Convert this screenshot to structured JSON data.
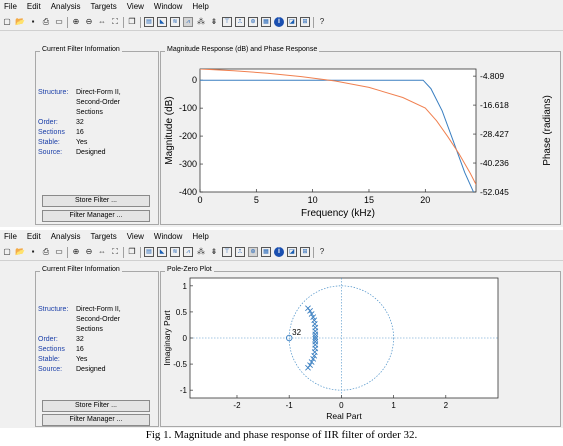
{
  "menu": [
    "File",
    "Edit",
    "Analysis",
    "Targets",
    "View",
    "Window",
    "Help"
  ],
  "toolbar_icons": [
    "new-icon",
    "open-icon",
    "save-icon",
    "print-icon",
    "print-preview-icon",
    "zoom-in-icon",
    "zoom-out-icon",
    "zoom-x-icon",
    "full-view-icon",
    "new-window-icon",
    "filter-spec-icon",
    "magnitude-icon",
    "phase-icon",
    "magnitude-phase-icon",
    "group-delay-icon",
    "phase-delay-icon",
    "impulse-response-icon",
    "step-response-icon",
    "pole-zero-icon",
    "coefficients-icon",
    "info-icon",
    "round-off-icon",
    "quantization-icon",
    "whats-this-icon"
  ],
  "filter_info": {
    "title": "Current Filter Information",
    "structure_label": "Structure:",
    "structure_value": "Direct-Form II, Second-Order Sections",
    "order_label": "Order:",
    "order_value": "32",
    "sections_label": "Sections",
    "sections_value": "16",
    "stable_label": "Stable:",
    "stable_value": "Yes",
    "source_label": "Source:",
    "source_value": "Designed",
    "store_button": "Store Filter ...",
    "manager_button": "Filter Manager ..."
  },
  "window1": {
    "panel_title": "Magnitude Response (dB) and Phase Response",
    "chart_data": {
      "type": "line",
      "xlabel": "Frequency (kHz)",
      "ylabel": "Magnitude (dB)",
      "y2label": "Phase (radians)",
      "xlim": [
        0,
        24.5
      ],
      "ylim": [
        -400,
        40
      ],
      "y2lim": [
        -52.045,
        -1.9
      ],
      "xticks": [
        0,
        5,
        10,
        15,
        20
      ],
      "yticks": [
        0,
        -100,
        -200,
        -300,
        -400
      ],
      "y2ticks": [
        "-4.809",
        "-16.618",
        "-28.427",
        "-40.236",
        "-52.045"
      ],
      "series": [
        {
          "color": "#3a7fc1",
          "axis": "left",
          "x": [
            0,
            5,
            10,
            15,
            19.8,
            20.5,
            21.5,
            22.5,
            23.5,
            24.5
          ],
          "y": [
            0,
            0,
            0,
            0,
            0,
            -30,
            -110,
            -220,
            -330,
            -420
          ]
        },
        {
          "color": "#f08050",
          "axis": "right",
          "x": [
            0,
            3,
            6,
            9,
            12,
            15,
            18,
            20,
            21,
            22,
            23,
            24,
            24.5
          ],
          "y": [
            -1.9,
            -2.6,
            -3.6,
            -5.0,
            -6.8,
            -9.4,
            -13.5,
            -17.8,
            -23,
            -29.5,
            -36.5,
            -44.5,
            -49
          ]
        }
      ]
    }
  },
  "window2": {
    "panel_title": "Pole-Zero Plot",
    "chart_data": {
      "type": "scatter",
      "xlabel": "Real Part",
      "ylabel": "Imaginary Part",
      "xlim": [
        -2.9,
        3.0
      ],
      "ylim": [
        -1.15,
        1.15
      ],
      "xticks": [
        -2,
        -1,
        0,
        1,
        2
      ],
      "yticks": [
        1,
        0.5,
        0,
        -0.5,
        -1
      ],
      "annotation": "32",
      "zeros": [
        {
          "x": -1,
          "y": 0,
          "multiplicity": 32
        }
      ],
      "poles": [
        {
          "x": -0.64,
          "y": 0.57
        },
        {
          "x": -0.6,
          "y": 0.52
        },
        {
          "x": -0.57,
          "y": 0.46
        },
        {
          "x": -0.54,
          "y": 0.4
        },
        {
          "x": -0.52,
          "y": 0.34
        },
        {
          "x": -0.51,
          "y": 0.27
        },
        {
          "x": -0.5,
          "y": 0.2
        },
        {
          "x": -0.5,
          "y": 0.13
        },
        {
          "x": -0.5,
          "y": 0.07
        },
        {
          "x": -0.5,
          "y": 0.02
        },
        {
          "x": -0.64,
          "y": -0.57
        },
        {
          "x": -0.6,
          "y": -0.52
        },
        {
          "x": -0.57,
          "y": -0.46
        },
        {
          "x": -0.54,
          "y": -0.4
        },
        {
          "x": -0.52,
          "y": -0.34
        },
        {
          "x": -0.51,
          "y": -0.27
        },
        {
          "x": -0.5,
          "y": -0.2
        },
        {
          "x": -0.5,
          "y": -0.13
        },
        {
          "x": -0.5,
          "y": -0.07
        },
        {
          "x": -0.5,
          "y": -0.02
        }
      ],
      "unit_circle": true
    }
  },
  "caption": "Fig 1. Magnitude and phase response of IIR filter of order 32."
}
